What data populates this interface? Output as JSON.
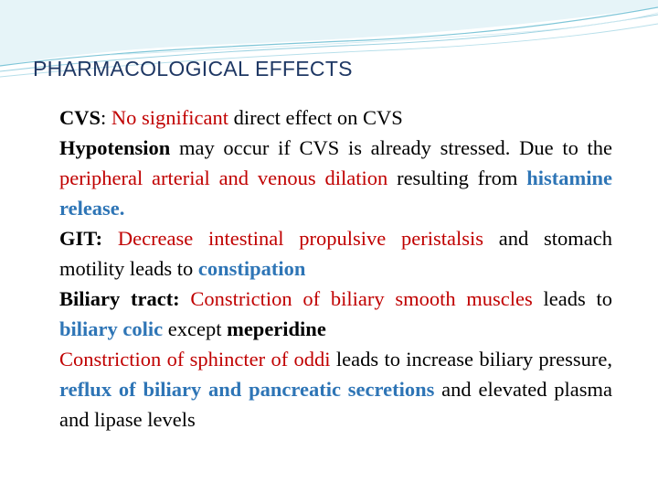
{
  "slide": {
    "title": "PHARMACOLOGICAL EFFECTS",
    "bullet_glyph": "",
    "colors": {
      "title": "#1f3864",
      "red_text": "#c00000",
      "blue_text": "#2e75b6",
      "bullet": "#4aa8c4",
      "header_wave": "#7fc6d8"
    },
    "points": [
      {
        "parts": [
          {
            "t": "CVS",
            "c": "k",
            "b": true
          },
          {
            "t": ": ",
            "c": "k",
            "b": false
          },
          {
            "t": "No significant ",
            "c": "r",
            "b": false
          },
          {
            "t": "direct effect on CVS",
            "c": "k",
            "b": false
          }
        ]
      },
      {
        "parts": [
          {
            "t": "Hypotension",
            "c": "k",
            "b": true
          },
          {
            "t": " may occur if CVS is already stressed. Due to the ",
            "c": "k",
            "b": false
          },
          {
            "t": "peripheral arterial and venous dilation",
            "c": "r",
            "b": false
          },
          {
            "t": " resulting from ",
            "c": "k",
            "b": false
          },
          {
            "t": "histamine release.",
            "c": "bl",
            "b": true
          }
        ]
      },
      {
        "parts": [
          {
            "t": "GIT: ",
            "c": "k",
            "b": true
          },
          {
            "t": "Decrease intestinal propulsive  peristalsis",
            "c": "r",
            "b": false
          },
          {
            "t": " and stomach motility leads to ",
            "c": "k",
            "b": false
          },
          {
            "t": "constipation",
            "c": "bl",
            "b": true
          }
        ]
      },
      {
        "parts": [
          {
            "t": "Biliary tract: ",
            "c": "k",
            "b": true
          },
          {
            "t": "Constriction of biliary smooth muscles",
            "c": "r",
            "b": false
          },
          {
            "t": " leads to ",
            "c": "k",
            "b": false
          },
          {
            "t": "biliary colic",
            "c": "bl",
            "b": true
          },
          {
            "t": " except ",
            "c": "k",
            "b": false
          },
          {
            "t": "meperidine",
            "c": "k",
            "b": true
          }
        ]
      },
      {
        "parts": [
          {
            "t": "Constriction of sphincter of oddi",
            "c": "r",
            "b": false
          },
          {
            "t": " leads to increase biliary pressure, ",
            "c": "k",
            "b": false
          },
          {
            "t": "reflux of biliary and pancreatic secretions",
            "c": "bl",
            "b": true
          },
          {
            "t": " and elevated plasma and lipase levels",
            "c": "k",
            "b": false
          }
        ]
      }
    ]
  }
}
